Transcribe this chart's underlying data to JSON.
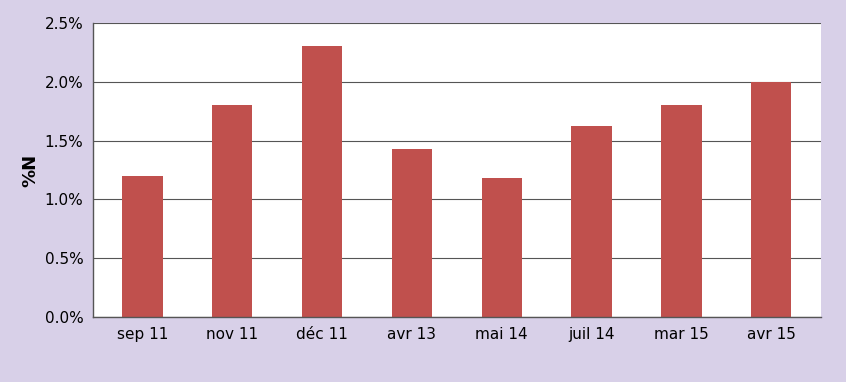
{
  "categories": [
    "sep 11",
    "nov 11",
    "déc 11",
    "avr 13",
    "mai 14",
    "juil 14",
    "mar 15",
    "avr 15"
  ],
  "values": [
    0.012,
    0.018,
    0.023,
    0.0143,
    0.0118,
    0.0162,
    0.018,
    0.02
  ],
  "bar_color": "#c0504d",
  "ylabel": "%N",
  "ylim": [
    0,
    0.025
  ],
  "yticks": [
    0.0,
    0.005,
    0.01,
    0.015,
    0.02,
    0.025
  ],
  "background_color": "#ffffff",
  "outer_background": "#d8d0e8",
  "grid_color": "#555555",
  "bar_width": 0.45,
  "tick_fontsize": 11,
  "ylabel_fontsize": 13
}
